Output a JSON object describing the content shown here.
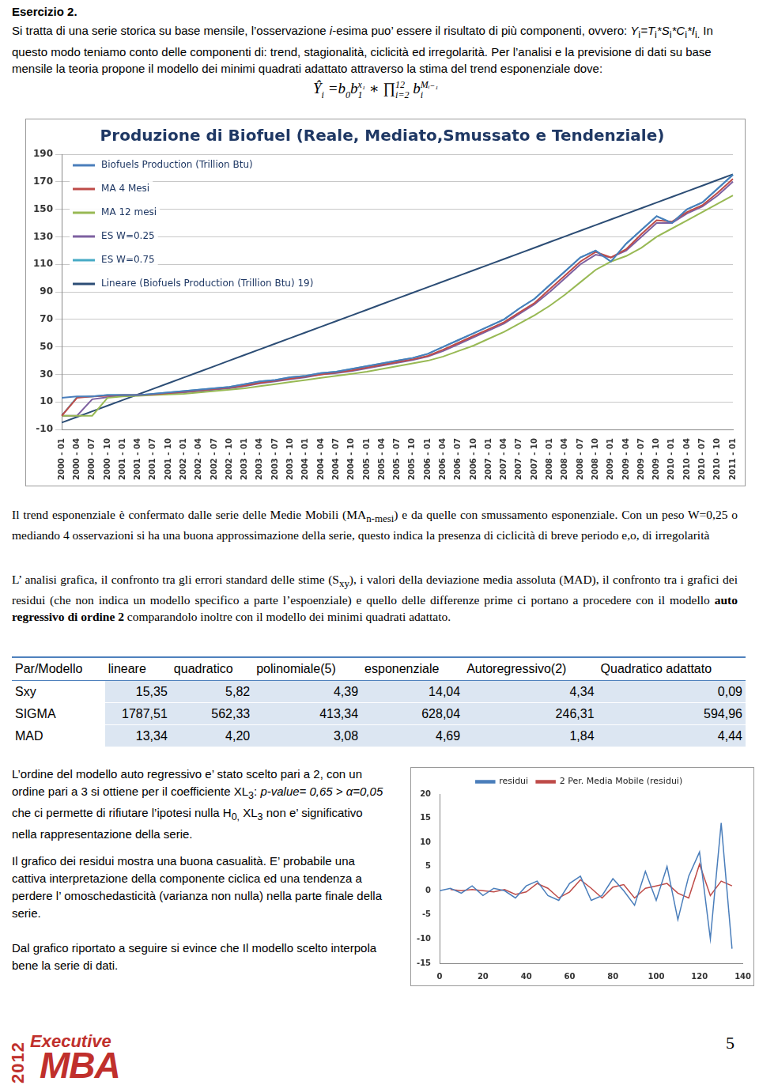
{
  "header": {
    "title": "Esercizio 2."
  },
  "intro": [
    {
      "text": "Si tratta di una serie storica  su base mensile, l’osservazione "
    },
    {
      "text": "i",
      "italic": true
    },
    {
      "text": "-esima puo’ essere il risultato di più componenti, ovvero: "
    },
    {
      "text": "Y",
      "italic": true
    },
    {
      "text": "i",
      "sub": true
    },
    {
      "text": "=T",
      "italic": true
    },
    {
      "text": "i",
      "sub": true
    },
    {
      "text": "*S",
      "italic": true
    },
    {
      "text": "i",
      "sub": true
    },
    {
      "text": "*C",
      "italic": true
    },
    {
      "text": "i",
      "sub": true
    },
    {
      "text": "*I",
      "italic": true
    },
    {
      "text": "i.",
      "sub": true
    },
    {
      "text": " In questo modo teniamo conto delle componenti di: trend, stagionalità, ciclicità ed irregolarità. Per l’analisi e la previsione di dati su base mensile la teoria propone il modello dei minimi quadrati adattato attraverso la stima del trend esponenziale dove:"
    }
  ],
  "formula": [
    {
      "text": "Ŷ",
      "sub": "i"
    },
    {
      "text": " =b",
      "sub": "0"
    },
    {
      "text": "b",
      "sub": "1",
      "sup": "x₁"
    },
    {
      "text": " ∗ ∏",
      "sub": "i=2",
      "sup": "12"
    },
    {
      "text": " b",
      "sub": "i",
      "sup": "Mᵢ₋₁"
    }
  ],
  "chart_data": [
    {
      "type": "line",
      "title": "Produzione di Biofuel (Reale, Mediato,Smussato e Tendenziale)",
      "categories": [
        "2000 - 01",
        "2000 - 04",
        "2000 - 07",
        "2000 - 10",
        "2001 - 01",
        "2001 - 04",
        "2001 - 07",
        "2001 - 10",
        "2002 - 01",
        "2002 - 04",
        "2002 - 07",
        "2002 - 10",
        "2003 - 01",
        "2003 - 04",
        "2003 - 07",
        "2003 - 10",
        "2004 - 01",
        "2004 - 04",
        "2004 - 07",
        "2004 - 10",
        "2005 - 01",
        "2005 - 04",
        "2005 - 07",
        "2005 - 10",
        "2006 - 01",
        "2006 - 04",
        "2006 - 07",
        "2006 - 10",
        "2007 - 01",
        "2007 - 04",
        "2007 - 07",
        "2007 - 10",
        "2008 - 01",
        "2008 - 04",
        "2008 - 07",
        "2008 - 10",
        "2009 - 01",
        "2009 - 04",
        "2009 - 07",
        "2009 - 10",
        "2010 - 01",
        "2010 - 04",
        "2010 - 07",
        "2010 - 10",
        "2011 - 01"
      ],
      "series": [
        {
          "name": "Biofuels Production (Trillion Btu)",
          "color": "#4a7ebb",
          "values": [
            13,
            14,
            14,
            15,
            15,
            15,
            16,
            17,
            18,
            19,
            20,
            21,
            23,
            25,
            26,
            28,
            29,
            31,
            32,
            34,
            36,
            38,
            40,
            42,
            45,
            50,
            55,
            60,
            65,
            70,
            78,
            85,
            95,
            105,
            115,
            120,
            112,
            125,
            135,
            145,
            140,
            150,
            155,
            165,
            175
          ]
        },
        {
          "name": "MA 4 Mesi",
          "color": "#be4b48",
          "values": [
            0,
            13,
            14,
            14.5,
            15,
            15,
            15.5,
            16.5,
            17.5,
            18.5,
            19.5,
            20.5,
            22,
            24,
            25.5,
            27,
            28.5,
            30,
            31.5,
            33,
            35,
            37,
            39,
            41,
            43.5,
            48,
            53,
            58,
            63,
            68,
            75,
            82,
            92,
            102,
            112,
            119,
            115,
            121,
            132,
            142,
            141,
            148,
            153,
            162,
            172
          ]
        },
        {
          "name": "MA 12 mesi",
          "color": "#98b954",
          "values": [
            0,
            0,
            0,
            13,
            14,
            14.5,
            15,
            15.5,
            16,
            17,
            18,
            19,
            20,
            21.5,
            23,
            24.5,
            26,
            27.5,
            29,
            30.5,
            32,
            34,
            36,
            38,
            40,
            43,
            47,
            51,
            56,
            61,
            67,
            73,
            80,
            88,
            97,
            106,
            112,
            116,
            122,
            130,
            136,
            142,
            148,
            154,
            160
          ]
        },
        {
          "name": "ES W=0.25",
          "color": "#7d60a0",
          "values": [
            0,
            0,
            12,
            13.5,
            14.5,
            15,
            15.5,
            16,
            17,
            18,
            19,
            20,
            21.5,
            23.5,
            25,
            26.5,
            28,
            30,
            31,
            32.5,
            34.5,
            36.5,
            38.5,
            40.5,
            43,
            47,
            52,
            57,
            62,
            67,
            74,
            81,
            90,
            100,
            110,
            117,
            115,
            120,
            130,
            140,
            140,
            147,
            152,
            160,
            170
          ]
        },
        {
          "name": "ES W=0.75",
          "color": "#46aac5",
          "values": [
            0,
            13.5,
            14,
            15,
            15,
            15,
            16,
            17,
            18,
            19,
            20,
            21,
            23,
            25,
            26,
            28,
            29,
            31,
            32,
            34,
            36,
            38,
            40,
            42,
            45,
            50,
            55,
            60,
            65,
            70,
            78,
            85,
            95,
            105,
            115,
            120,
            112,
            125,
            135,
            145,
            140,
            150,
            155,
            165,
            175
          ]
        },
        {
          "name": "Lineare (Biofuels Production (Trillion Btu) 19)",
          "color": "#2c4d75",
          "values": [
            -5,
            -0.9,
            3.2,
            7.3,
            11.4,
            15.5,
            19.6,
            23.7,
            27.8,
            31.9,
            36,
            40.1,
            44.2,
            48.3,
            52.4,
            56.5,
            60.6,
            64.7,
            68.8,
            72.9,
            77,
            81.1,
            85.2,
            89.3,
            93.4,
            97.5,
            101.6,
            105.7,
            109.8,
            113.9,
            118,
            122.1,
            126.2,
            130.3,
            134.4,
            138.5,
            142.6,
            146.7,
            150.8,
            154.9,
            159,
            163.1,
            167.2,
            171.3,
            175.4
          ]
        }
      ],
      "ylim": [
        -10,
        190
      ],
      "yticks": [
        -10,
        10,
        30,
        50,
        70,
        90,
        110,
        130,
        150,
        170,
        190
      ],
      "grid": true,
      "legend": "upper left"
    },
    {
      "type": "line",
      "x": [
        0,
        5,
        10,
        15,
        20,
        25,
        30,
        35,
        40,
        45,
        50,
        55,
        60,
        65,
        70,
        75,
        80,
        85,
        90,
        95,
        100,
        105,
        110,
        115,
        120,
        125,
        130,
        135
      ],
      "series": [
        {
          "name": "residui",
          "color": "#4a7ebb",
          "values": [
            0,
            0.5,
            -0.5,
            1,
            -1,
            0.5,
            0,
            -1.5,
            1,
            2,
            -1,
            -2,
            1.5,
            3,
            -2,
            -1,
            2.5,
            0,
            -3,
            4,
            -2,
            5,
            -6,
            3,
            8,
            -10,
            14,
            -12
          ]
        },
        {
          "name": "2 Per. Media Mobile (residui)",
          "color": "#be4b48",
          "values": [
            null,
            0.25,
            0,
            0.25,
            0,
            -0.25,
            0.25,
            -0.75,
            -0.25,
            1.5,
            0.5,
            -1.5,
            -0.25,
            2.25,
            0.5,
            -1.5,
            0.75,
            1.25,
            -1.5,
            0.5,
            1,
            1.5,
            -0.5,
            -1.5,
            5.5,
            -1,
            2,
            1
          ]
        }
      ],
      "xlim": [
        0,
        140
      ],
      "xticks": [
        0,
        20,
        40,
        60,
        80,
        100,
        120,
        140
      ],
      "ylim": [
        -15,
        20
      ],
      "yticks": [
        -15,
        -10,
        -5,
        0,
        5,
        10,
        15,
        20
      ],
      "grid": false,
      "legend": "top"
    }
  ],
  "paragraph_2": [
    {
      "text": "Il trend esponenziale è  confermato dalle serie delle Medie Mobili (MA"
    },
    {
      "text": "n-mesi",
      "sub": true
    },
    {
      "text": ") e da quelle con smussamento esponenziale. Con un peso W=0,25 o mediando 4 osservazioni si ha una buona approssimazione della serie, questo indica la presenza di  ciclicità di breve periodo  e,o, di irregolarità"
    }
  ],
  "paragraph_3": [
    {
      "text": "L’ analisi grafica, il confronto  tra gli errori standard delle stime (S"
    },
    {
      "text": "xy",
      "sub": true
    },
    {
      "text": "), i valori della deviazione  media assoluta (MAD), il confronto tra i grafici dei residui (che non indica un modello specifico a parte l’espoenziale) e quello delle differenze prime ci portano a procedere con il modello "
    },
    {
      "text": "auto regressivo di ordine 2",
      "bold": true
    },
    {
      "text": " comparandolo inoltre con il modello dei minimi quadrati adattato."
    }
  ],
  "table": {
    "header": [
      "Par/Modello",
      "lineare",
      "quadratico",
      "polinomiale(5)",
      "esponenziale",
      "Autoregressivo(2)",
      "Quadratico adattato"
    ],
    "rows": [
      [
        "Sxy",
        "15,35",
        "5,82",
        "4,39",
        "14,04",
        "4,34",
        "0,09"
      ],
      [
        "SIGMA",
        "1787,51",
        "562,33",
        "413,34",
        "628,04",
        "246,31",
        "594,96"
      ],
      [
        "MAD",
        "13,34",
        "4,20",
        "3,08",
        "4,69",
        "1,84",
        "4,44"
      ]
    ]
  },
  "paragraph_4": [
    {
      "text": "L’ordine del modello auto regressivo e’ stato scelto pari a 2, con un ordine pari a 3 si ottiene per il coefficiente XL"
    },
    {
      "text": "3",
      "sub": true
    },
    {
      "text": ": "
    },
    {
      "text": "p-value= 0,65 > α=0,05",
      "italic": true
    },
    {
      "text": " che ci permette di rifiutare l’ipotesi nulla H"
    },
    {
      "text": "0,",
      "sub": true
    },
    {
      "text": " XL"
    },
    {
      "text": "3",
      "sub": true
    },
    {
      "text": " non e’ significativo nella rappresentazione della serie."
    }
  ],
  "paragraph_5": [
    {
      "text": "Il grafico dei residui mostra una buona casualità. E’ probabile una cattiva interpretazione della componente ciclica ed una tendenza a perdere l’ omoschedasticità (varianza non nulla) nella parte finale della serie."
    }
  ],
  "paragraph_6": [
    {
      "text": "Dal grafico riportato a seguire si evince che Il modello scelto interpola bene la serie  di dati."
    }
  ],
  "footer": {
    "logo_word_1": "Executive",
    "logo_word_2": "MBA",
    "logo_year": "2012",
    "page_number": "5"
  }
}
